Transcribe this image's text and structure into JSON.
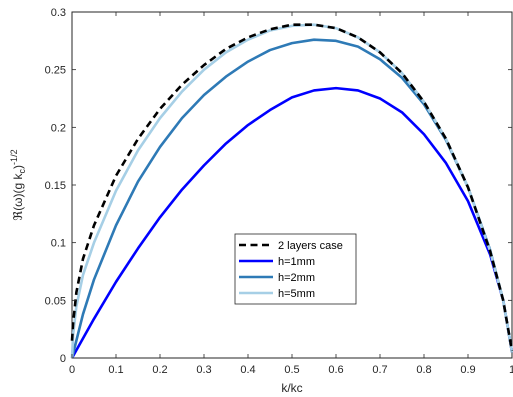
{
  "chart_data": {
    "type": "line",
    "title": "",
    "xlabel": "k/kc",
    "ylabel": {
      "base": "ℜ(ω)(g k",
      "sub": "c",
      "close": ")",
      "sup": "-1/2"
    },
    "xlim": [
      0,
      1
    ],
    "ylim": [
      0,
      0.3
    ],
    "xticks": [
      0,
      0.1,
      0.2,
      0.3,
      0.4,
      0.5,
      0.6,
      0.7,
      0.8,
      0.9,
      1
    ],
    "xtick_labels": [
      "0",
      "0.1",
      "0.2",
      "0.3",
      "0.4",
      "0.5",
      "0.6",
      "0.7",
      "0.8",
      "0.9",
      "1"
    ],
    "yticks": [
      0,
      0.05,
      0.1,
      0.15,
      0.2,
      0.25,
      0.3
    ],
    "ytick_labels": [
      "0",
      "0.05",
      "0.1",
      "0.15",
      "0.2",
      "0.25",
      "0.3"
    ],
    "grid": false,
    "legend": {
      "placement": "center-bottom",
      "entries": [
        "2 layers case",
        "h=1mm",
        "h=2mm",
        "h=5mm"
      ]
    },
    "series": [
      {
        "name": "2 layers case",
        "color": "#000000",
        "dash": true,
        "x": [
          0,
          0.0025,
          0.01,
          0.025,
          0.05,
          0.1,
          0.15,
          0.2,
          0.25,
          0.3,
          0.35,
          0.4,
          0.45,
          0.5,
          0.55,
          0.6,
          0.65,
          0.7,
          0.75,
          0.8,
          0.85,
          0.9,
          0.95,
          0.98,
          1.0
        ],
        "y": [
          0.015,
          0.03,
          0.057,
          0.086,
          0.115,
          0.158,
          0.19,
          0.216,
          0.237,
          0.254,
          0.268,
          0.278,
          0.285,
          0.289,
          0.289,
          0.286,
          0.278,
          0.265,
          0.247,
          0.222,
          0.19,
          0.148,
          0.093,
          0.05,
          0.006
        ]
      },
      {
        "name": "h=1mm",
        "color": "#0000ff",
        "dash": false,
        "x": [
          0,
          0.05,
          0.1,
          0.15,
          0.2,
          0.25,
          0.3,
          0.35,
          0.4,
          0.45,
          0.5,
          0.55,
          0.6,
          0.65,
          0.7,
          0.75,
          0.8,
          0.85,
          0.9,
          0.95,
          0.98,
          1.0
        ],
        "y": [
          0,
          0.034,
          0.066,
          0.095,
          0.122,
          0.146,
          0.167,
          0.186,
          0.202,
          0.215,
          0.226,
          0.232,
          0.234,
          0.232,
          0.225,
          0.213,
          0.194,
          0.169,
          0.136,
          0.09,
          0.05,
          0.005
        ]
      },
      {
        "name": "h=2mm",
        "color": "#2e7ab6",
        "dash": false,
        "x": [
          0,
          0.025,
          0.05,
          0.1,
          0.15,
          0.2,
          0.25,
          0.3,
          0.35,
          0.4,
          0.45,
          0.5,
          0.55,
          0.6,
          0.65,
          0.7,
          0.75,
          0.8,
          0.85,
          0.9,
          0.95,
          0.98,
          1.0
        ],
        "y": [
          0,
          0.038,
          0.068,
          0.115,
          0.153,
          0.183,
          0.208,
          0.228,
          0.244,
          0.257,
          0.267,
          0.273,
          0.276,
          0.275,
          0.27,
          0.259,
          0.243,
          0.22,
          0.189,
          0.148,
          0.094,
          0.05,
          0.005
        ]
      },
      {
        "name": "h=5mm",
        "color": "#a6cfe6",
        "dash": false,
        "x": [
          0,
          0.0025,
          0.01,
          0.025,
          0.05,
          0.1,
          0.15,
          0.2,
          0.25,
          0.3,
          0.35,
          0.4,
          0.45,
          0.5,
          0.55,
          0.6,
          0.65,
          0.7,
          0.75,
          0.8,
          0.85,
          0.9,
          0.95,
          0.98,
          1.0
        ],
        "y": [
          0,
          0.02,
          0.045,
          0.072,
          0.1,
          0.145,
          0.18,
          0.208,
          0.231,
          0.25,
          0.265,
          0.276,
          0.284,
          0.288,
          0.289,
          0.286,
          0.278,
          0.265,
          0.247,
          0.222,
          0.19,
          0.148,
          0.093,
          0.05,
          0.005
        ]
      }
    ]
  }
}
